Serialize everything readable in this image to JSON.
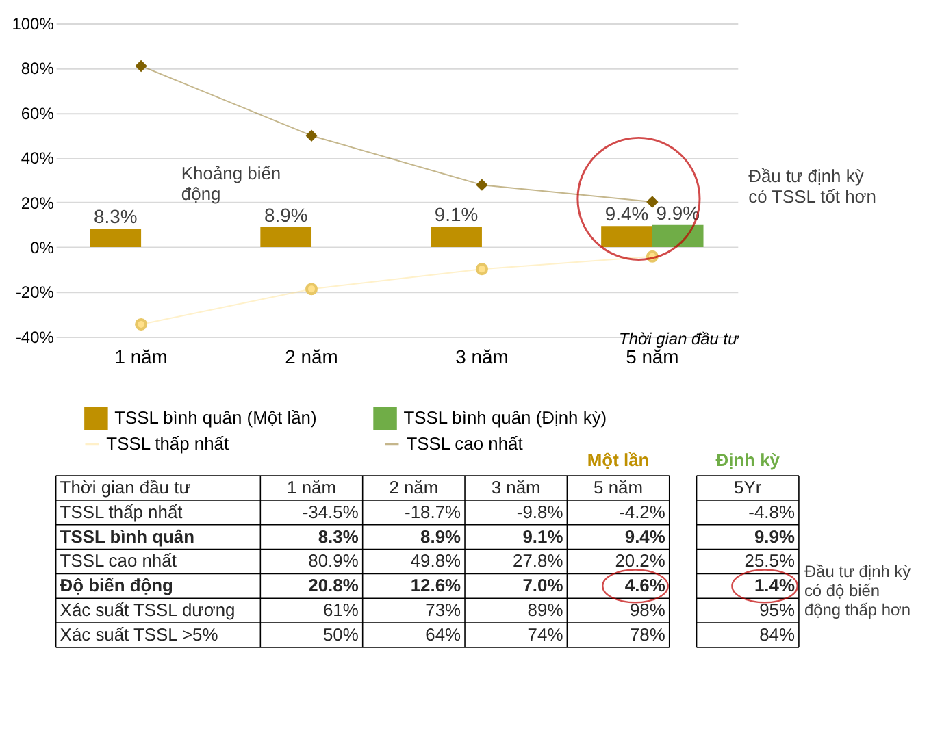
{
  "chart_data": [
    {
      "type": "bar",
      "categories": [
        "1 năm",
        "2 năm",
        "3 năm",
        "5 năm"
      ],
      "xlabel": "Thời gian đầu tư",
      "ylim": [
        -40,
        100
      ],
      "yticks": [
        {
          "value": -40,
          "label": "-40%"
        },
        {
          "value": -20,
          "label": "-20%"
        },
        {
          "value": 0,
          "label": "0%"
        },
        {
          "value": 20,
          "label": "20%"
        },
        {
          "value": 40,
          "label": "40%"
        },
        {
          "value": 60,
          "label": "60%"
        },
        {
          "value": 80,
          "label": "80%"
        },
        {
          "value": 100,
          "label": "100%"
        }
      ],
      "grid": "y",
      "legend": "bottom",
      "series": [
        {
          "name": "TSSL bình quân (Một lần)",
          "color": "#bf9000",
          "values": [
            8.3,
            8.9,
            9.1,
            9.4
          ],
          "value_labels": [
            "8.3%",
            "8.9%",
            "9.1%",
            "9.4%"
          ]
        },
        {
          "name": "TSSL bình quân (Định kỳ)",
          "color": "#70ad47",
          "values": [
            null,
            null,
            null,
            9.9
          ],
          "value_labels": [
            null,
            null,
            null,
            "9.9%"
          ]
        },
        {
          "name": "TSSL thấp nhất",
          "type": "line",
          "marker": "circle",
          "color": "#ffe08a",
          "values": [
            -34.5,
            -18.7,
            -9.8,
            -4.2
          ]
        },
        {
          "name": "TSSL cao nhất",
          "type": "line",
          "marker": "diamond",
          "color": "#7f6000",
          "values": [
            80.9,
            49.8,
            27.8,
            20.2
          ]
        }
      ],
      "annotations": [
        "Khoảng biến động",
        "Đầu tư định kỳ có TSSL tốt hơn"
      ]
    },
    {
      "type": "other",
      "categories": [
        "Thời gian đầu tư",
        "1 năm",
        "2 năm",
        "3 năm",
        "5 năm",
        "5Yr"
      ],
      "y_categories": [
        "TSSL thấp nhất",
        "TSSL bình quân",
        "TSSL cao nhất",
        "Độ biến động",
        "Xác suất TSSL dương",
        "Xác suất TSSL >5%"
      ],
      "cell_labels": [
        [
          "-34.5%",
          "-18.7%",
          "-9.8%",
          "-4.2%",
          "-4.8%"
        ],
        [
          "8.3%",
          "8.9%",
          "9.1%",
          "9.4%",
          "9.9%"
        ],
        [
          "80.9%",
          "49.8%",
          "27.8%",
          "20.2%",
          "25.5%"
        ],
        [
          "20.8%",
          "12.6%",
          "7.0%",
          "4.6%",
          "1.4%"
        ],
        [
          "61%",
          "73%",
          "89%",
          "98%",
          "95%"
        ],
        [
          "50%",
          "64%",
          "74%",
          "78%",
          "84%"
        ]
      ],
      "annotations": [
        "Một lần",
        "Định kỳ",
        "Đầu tư định kỳ có độ biến động thấp hơn"
      ]
    }
  ]
}
